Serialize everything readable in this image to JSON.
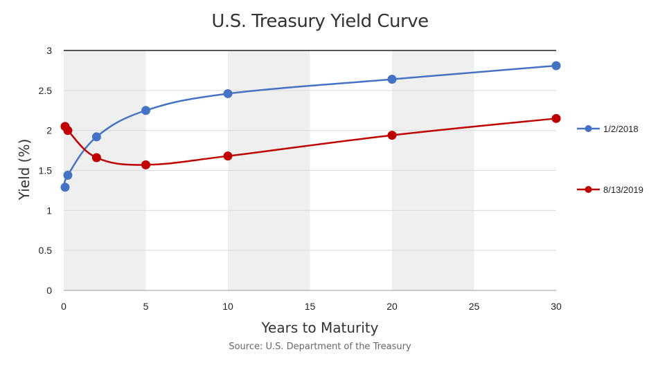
{
  "chart_data": {
    "type": "line",
    "title": "U.S. Treasury Yield Curve",
    "xlabel": "Years to Maturity",
    "ylabel": "Yield (%)",
    "source": "Source: U.S. Department of the Treasury",
    "xlim": [
      0,
      30
    ],
    "ylim": [
      0,
      3
    ],
    "x_ticks": [
      0,
      5,
      10,
      15,
      20,
      25,
      30
    ],
    "y_ticks": [
      "0",
      "0.5",
      "1",
      "1.5",
      "2",
      "2.5",
      "3"
    ],
    "grid": "horizontal",
    "shaded_bands": [
      [
        0,
        5
      ],
      [
        10,
        15
      ],
      [
        20,
        25
      ]
    ],
    "legend_position": "right",
    "series": [
      {
        "name": "1/2/2018",
        "color": "#4472C4",
        "x": [
          0.083,
          0.25,
          2,
          5,
          10,
          20,
          30
        ],
        "y": [
          1.29,
          1.44,
          1.92,
          2.25,
          2.46,
          2.64,
          2.81
        ]
      },
      {
        "name": "8/13/2019",
        "color": "#C00000",
        "x": [
          0.083,
          0.25,
          2,
          5,
          10,
          20,
          30
        ],
        "y": [
          2.05,
          2.0,
          1.66,
          1.57,
          1.68,
          1.94,
          2.15
        ]
      }
    ]
  }
}
